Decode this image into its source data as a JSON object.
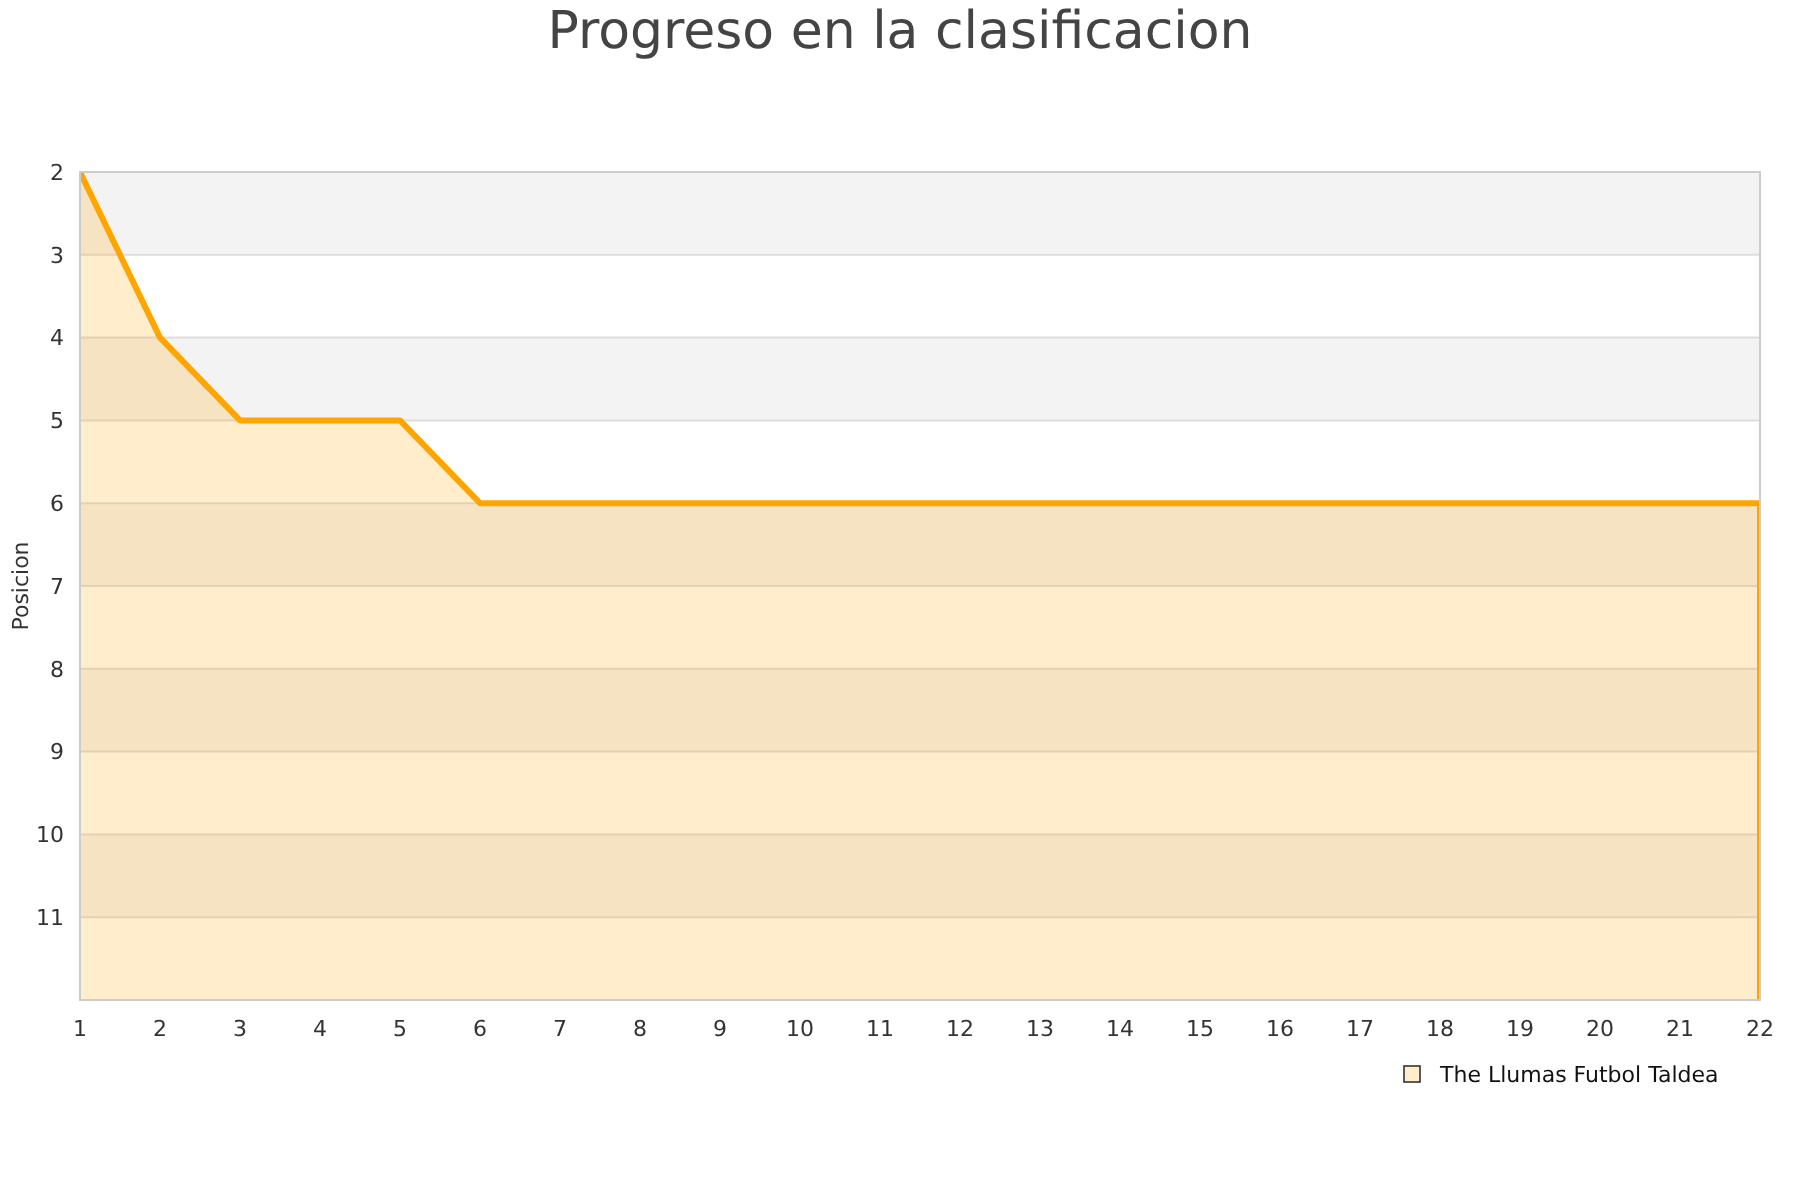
{
  "chart_data": {
    "type": "area",
    "title": "Progreso en la clasificacion",
    "ylabel": "Posicion",
    "x": [
      1,
      2,
      3,
      4,
      5,
      6,
      7,
      8,
      9,
      10,
      11,
      12,
      13,
      14,
      15,
      16,
      17,
      18,
      19,
      20,
      21,
      22
    ],
    "series": [
      {
        "name": "The Llumas Futbol Taldea",
        "color": "#ffa500",
        "values": [
          2,
          4,
          5,
          5,
          5,
          6,
          6,
          6,
          6,
          6,
          6,
          6,
          6,
          6,
          6,
          6,
          6,
          6,
          6,
          6,
          6,
          6
        ]
      }
    ],
    "xlim": [
      1,
      22
    ],
    "xticks": [
      1,
      2,
      3,
      4,
      5,
      6,
      7,
      8,
      9,
      10,
      11,
      12,
      13,
      14,
      15,
      16,
      17,
      18,
      19,
      20,
      21,
      22
    ],
    "ylim": [
      12,
      2
    ],
    "yticks": [
      2,
      3,
      4,
      5,
      6,
      7,
      8,
      9,
      10,
      11
    ],
    "grid": "y",
    "legend": "bottom right",
    "marker": "none"
  }
}
